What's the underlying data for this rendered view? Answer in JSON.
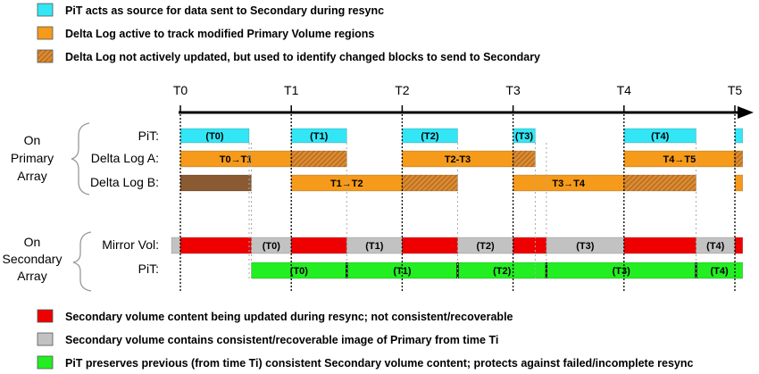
{
  "legend_top": [
    {
      "text": "PiT acts as source for data sent to Secondary during resync",
      "fill": "cyan"
    },
    {
      "text": "Delta Log active to track modified Primary Volume regions",
      "fill": "orange"
    },
    {
      "text": "Delta Log not actively updated, but used to identify changed blocks to send to Secondary",
      "fill": "hatch"
    }
  ],
  "legend_bottom": [
    {
      "text": "Secondary volume content being updated during resync; not consistent/recoverable",
      "fill": "red"
    },
    {
      "text": "Secondary volume contains consistent/recoverable image of Primary from time Ti",
      "fill": "gray"
    },
    {
      "text": "PiT preserves previous (from time Ti) consistent Secondary volume content; protects against failed/incomplete resync",
      "fill": "green"
    }
  ],
  "times": [
    "T0",
    "T1",
    "T2",
    "T3",
    "T4",
    "T5"
  ],
  "groups": {
    "primary": [
      "On",
      "Primary",
      "Array"
    ],
    "secondary": [
      "On",
      "Secondary",
      "Array"
    ]
  },
  "row_labels": {
    "pit_primary": "PiT:",
    "delta_a": "Delta Log A:",
    "delta_b": "Delta Log B:",
    "mirror": "Mirror Vol:",
    "pit_secondary": "PiT:"
  },
  "colors": {
    "cyan": "#33e6f5",
    "orange": "#f59a1a",
    "hatch_base": "#dc8a30",
    "hatch_line": "#9a5a18",
    "brown": "#8a5a32",
    "red": "#ee0000",
    "gray": "#c2c2c2",
    "green": "#22ee22"
  },
  "rows": {
    "pit_primary": [
      {
        "from": 0,
        "to": 0.62,
        "fill": "cyan",
        "label": "(T0)"
      },
      {
        "from": 1,
        "to": 1.5,
        "fill": "cyan",
        "label": "(T1)"
      },
      {
        "from": 2,
        "to": 2.5,
        "fill": "cyan",
        "label": "(T2)"
      },
      {
        "from": 3,
        "to": 3.2,
        "fill": "cyan",
        "label": "(T3)"
      },
      {
        "from": 4,
        "to": 4.65,
        "fill": "cyan",
        "label": "(T4)"
      },
      {
        "from": 5,
        "to": 5.07,
        "fill": "cyan",
        "label": ""
      }
    ],
    "delta_a": [
      {
        "from": 0,
        "to": 1,
        "fill": "orange",
        "label": "T0→T1"
      },
      {
        "from": 1,
        "to": 1.5,
        "fill": "hatch",
        "label": ""
      },
      {
        "from": 2,
        "to": 3,
        "fill": "orange",
        "label": "T2-T3"
      },
      {
        "from": 3,
        "to": 3.2,
        "fill": "hatch",
        "label": ""
      },
      {
        "from": 4,
        "to": 5,
        "fill": "orange",
        "label": "T4→T5"
      },
      {
        "from": 5,
        "to": 5.07,
        "fill": "hatch",
        "label": ""
      }
    ],
    "delta_b": [
      {
        "from": 0,
        "to": 0.64,
        "fill": "brown",
        "label": ""
      },
      {
        "from": 1,
        "to": 2,
        "fill": "orange",
        "label": "T1→T2"
      },
      {
        "from": 2,
        "to": 2.5,
        "fill": "hatch",
        "label": ""
      },
      {
        "from": 3,
        "to": 4,
        "fill": "orange",
        "label": "T3→T4"
      },
      {
        "from": 4,
        "to": 4.65,
        "fill": "hatch",
        "label": ""
      },
      {
        "from": 5,
        "to": 5.07,
        "fill": "orange",
        "label": ""
      }
    ],
    "mirror": [
      {
        "from": -0.08,
        "to": 0,
        "fill": "gray",
        "label": ""
      },
      {
        "from": 0,
        "to": 0.64,
        "fill": "red",
        "label": ""
      },
      {
        "from": 0.64,
        "to": 1,
        "fill": "gray",
        "label": "(T0)"
      },
      {
        "from": 1,
        "to": 1.5,
        "fill": "red",
        "label": ""
      },
      {
        "from": 1.5,
        "to": 2,
        "fill": "gray",
        "label": "(T1)"
      },
      {
        "from": 2,
        "to": 2.5,
        "fill": "red",
        "label": ""
      },
      {
        "from": 2.5,
        "to": 3,
        "fill": "gray",
        "label": "(T2)"
      },
      {
        "from": 3,
        "to": 3.3,
        "fill": "red",
        "label": ""
      },
      {
        "from": 3.3,
        "to": 4,
        "fill": "gray",
        "label": "(T3)"
      },
      {
        "from": 4,
        "to": 4.65,
        "fill": "red",
        "label": ""
      },
      {
        "from": 4.65,
        "to": 5,
        "fill": "gray",
        "label": "(T4)"
      },
      {
        "from": 5,
        "to": 5.07,
        "fill": "red",
        "label": ""
      }
    ],
    "pit_secondary": [
      {
        "from": 0.64,
        "to": 1.5,
        "fill": "green",
        "label": "(T0)"
      },
      {
        "from": 1.5,
        "to": 2.5,
        "fill": "green",
        "label": "(T1)"
      },
      {
        "from": 2.5,
        "to": 3.3,
        "fill": "green",
        "label": "(T2)"
      },
      {
        "from": 3.3,
        "to": 4.65,
        "fill": "green",
        "label": "(T3)"
      },
      {
        "from": 4.65,
        "to": 5.07,
        "fill": "green",
        "label": "(T4)"
      }
    ]
  }
}
